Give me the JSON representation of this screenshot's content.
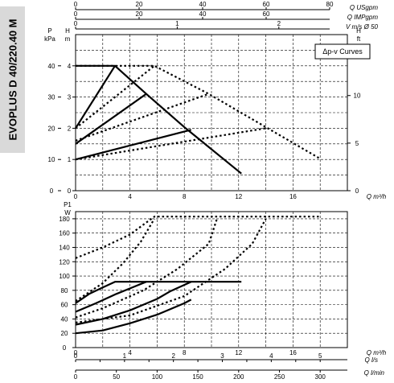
{
  "model_label": "EVOPLUS D 40/220.40 M",
  "top_axes": [
    {
      "unit": "Q USgpm",
      "ticks": [
        0,
        20,
        40,
        60,
        80
      ],
      "max": 80
    },
    {
      "unit": "Q IMPgpm",
      "ticks": [
        0,
        20,
        40,
        60
      ],
      "max": 80
    },
    {
      "unit": "V m/s Ø 50",
      "ticks": [
        0,
        1,
        2
      ],
      "max": 2.5
    }
  ],
  "bottom_axes": [
    {
      "unit": "Q l/s",
      "ticks": [
        0,
        2,
        4,
        6,
        8,
        10,
        12,
        14,
        16,
        18,
        20
      ],
      "labeled": [
        0,
        1,
        2,
        3,
        4,
        5
      ],
      "max": 5
    },
    {
      "unit": "Q l/min",
      "ticks": [
        0,
        50,
        100,
        150,
        200,
        250,
        300
      ],
      "max": 300
    }
  ],
  "chart_data": [
    {
      "type": "line",
      "name": "head",
      "legend": "Δp-v Curves",
      "xlabel": "Q m³/h",
      "xlim": [
        0,
        20
      ],
      "xticks": [
        0,
        4,
        8,
        12,
        16
      ],
      "ylim": [
        0,
        5
      ],
      "y_left_unit": "H m",
      "y_left_ticks": [
        0,
        1,
        2,
        3,
        4
      ],
      "y_kpa_unit": "P kPa",
      "y_kpa_ticks": [
        0,
        10,
        20,
        30,
        40
      ],
      "y_right_unit": "H ft",
      "y_right_ticks": [
        0,
        5,
        10
      ],
      "grid": true,
      "series": [
        {
          "style": "solid",
          "points": [
            [
              0,
              4
            ],
            [
              2.9,
              4
            ],
            [
              5.2,
              3.1
            ],
            [
              8.1,
              2
            ],
            [
              12.2,
              0.55
            ]
          ]
        },
        {
          "style": "solid",
          "points": [
            [
              0,
              2
            ],
            [
              2.9,
              4
            ]
          ]
        },
        {
          "style": "solid",
          "points": [
            [
              0,
              1.5
            ],
            [
              5.2,
              3.1
            ]
          ]
        },
        {
          "style": "solid",
          "points": [
            [
              0,
              1
            ],
            [
              8.5,
              1.95
            ]
          ]
        },
        {
          "style": "dotted",
          "points": [
            [
              0,
              4
            ],
            [
              5.8,
              4
            ],
            [
              9.8,
              3.1
            ],
            [
              17.9,
              1.05
            ]
          ]
        },
        {
          "style": "dotted",
          "points": [
            [
              0,
              2
            ],
            [
              5.8,
              4
            ]
          ]
        },
        {
          "style": "dotted",
          "points": [
            [
              0,
              1.6
            ],
            [
              9.8,
              3.1
            ]
          ]
        },
        {
          "style": "dotted",
          "points": [
            [
              0,
              1
            ],
            [
              14,
              2
            ]
          ]
        }
      ]
    },
    {
      "type": "line",
      "name": "power",
      "xlabel": "Q m³/h",
      "xlim": [
        0,
        20
      ],
      "xticks": [
        0,
        4,
        8,
        12,
        16
      ],
      "ylim": [
        0,
        190
      ],
      "y_unit": "P1 W",
      "y_ticks": [
        0,
        20,
        40,
        60,
        80,
        100,
        120,
        140,
        160,
        180
      ],
      "grid": true,
      "series": [
        {
          "style": "solid",
          "points": [
            [
              0,
              62
            ],
            [
              1,
              75
            ],
            [
              2,
              84
            ],
            [
              2.9,
              92
            ],
            [
              12.2,
              92
            ]
          ]
        },
        {
          "style": "solid",
          "points": [
            [
              0,
              50
            ],
            [
              1.5,
              62
            ],
            [
              3,
              75
            ],
            [
              4.3,
              85
            ],
            [
              5.2,
              92
            ]
          ]
        },
        {
          "style": "solid",
          "points": [
            [
              0,
              32
            ],
            [
              2,
              40
            ],
            [
              4,
              52
            ],
            [
              6,
              68
            ],
            [
              7,
              79
            ],
            [
              8.5,
              92
            ]
          ]
        },
        {
          "style": "solid",
          "points": [
            [
              0,
              20
            ],
            [
              2,
              24
            ],
            [
              4,
              34
            ],
            [
              6,
              46
            ],
            [
              8,
              62
            ],
            [
              8.5,
              67
            ]
          ]
        },
        {
          "style": "dotted",
          "points": [
            [
              0,
              125
            ],
            [
              2,
              140
            ],
            [
              4,
              158
            ],
            [
              5.8,
              183
            ],
            [
              17.9,
              183
            ]
          ]
        },
        {
          "style": "dotted",
          "points": [
            [
              0,
              65
            ],
            [
              2,
              90
            ],
            [
              3.5,
              118
            ],
            [
              4.8,
              148
            ],
            [
              5.8,
              180
            ]
          ]
        },
        {
          "style": "dotted",
          "points": [
            [
              0,
              42
            ],
            [
              2,
              55
            ],
            [
              5,
              80
            ],
            [
              7.5,
              110
            ],
            [
              9.8,
              145
            ],
            [
              10.4,
              180
            ]
          ]
        },
        {
          "style": "dotted",
          "points": [
            [
              0,
              35
            ],
            [
              4,
              45
            ],
            [
              8,
              72
            ],
            [
              11,
              110
            ],
            [
              13,
              145
            ],
            [
              14,
              180
            ]
          ]
        }
      ]
    }
  ]
}
